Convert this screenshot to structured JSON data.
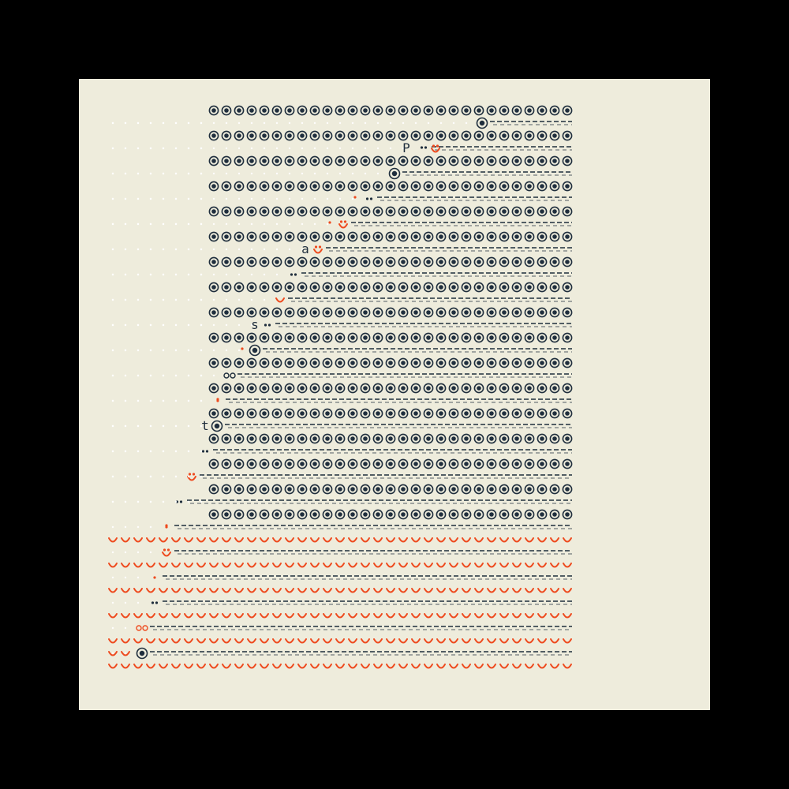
{
  "colors": {
    "outer_background": "#000000",
    "paper": "#EEECDC",
    "ink": "#1F2E3D",
    "accent": "#EE4A1E",
    "faint_dot": "#FFFFFF"
  },
  "glyphs": {
    "filled_row_symbol": "target-ring-icon",
    "lower_row_symbol": "smile-icon",
    "trail_symbol": "dash",
    "empty_cell_symbol": "faint-dot"
  },
  "letters": [
    "P",
    "a",
    "s",
    "t"
  ],
  "counts": {
    "upper_ring_rows": 17,
    "lower_smile_rows": 6,
    "columns": 37
  }
}
